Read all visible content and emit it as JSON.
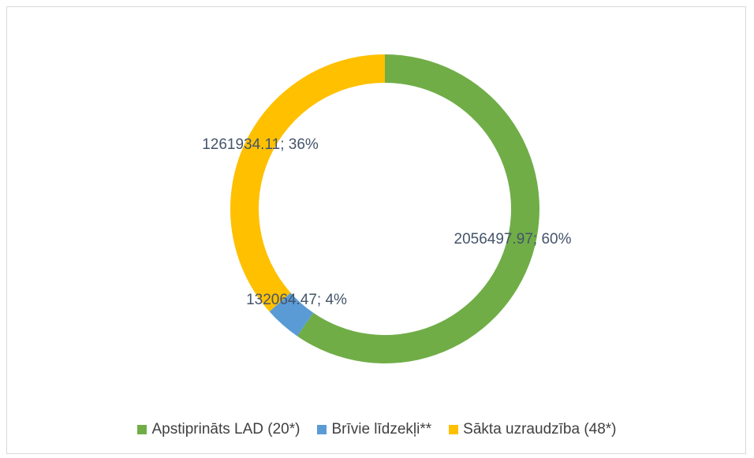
{
  "chart_data": {
    "type": "donut",
    "categories": [
      "Apstiprināts LAD (20*)",
      "Brīvie līdzekļi**",
      "Sākta uzraudzība (48*)"
    ],
    "values": [
      2056497.97,
      132064.47,
      1261934.11
    ],
    "value_labels": [
      "2056497.97; 60%",
      "132064.47; 4%",
      "1261934.11; 36%"
    ],
    "colors": [
      "#70ad47",
      "#5b9bd5",
      "#ffc000"
    ],
    "legend": "bottom"
  }
}
